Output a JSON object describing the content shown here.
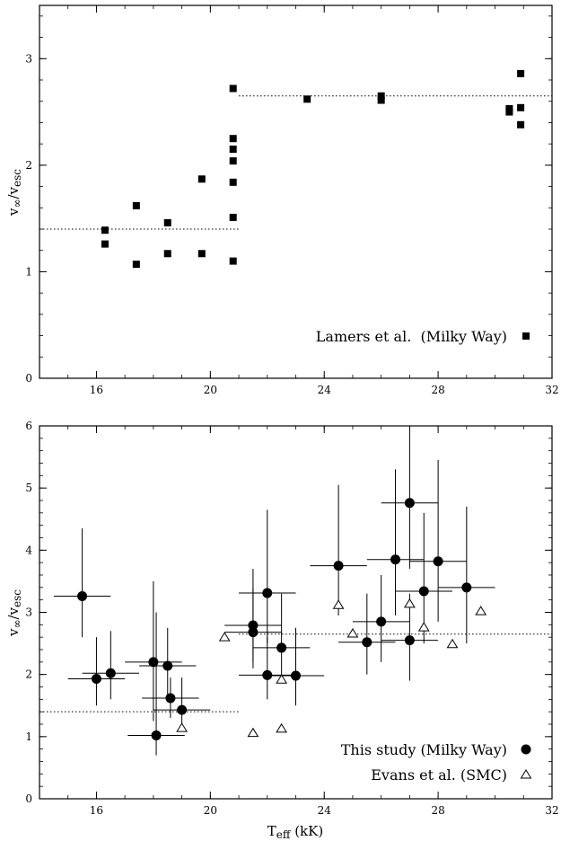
{
  "chart_data": [
    {
      "type": "scatter",
      "xlim": [
        14,
        32
      ],
      "ylim": [
        0,
        3.5
      ],
      "xticks": [
        "16",
        "20",
        "24",
        "28",
        "32"
      ],
      "yticks": [
        "0",
        "1",
        "2",
        "3"
      ],
      "ylabel": "v∞/vesc",
      "xlabel": "",
      "grid": false,
      "legend": "bottom-right",
      "series": [
        {
          "name": "Lamers et al.  (Milky Way)",
          "marker": "filled-square",
          "points": [
            [
              16.3,
              1.39
            ],
            [
              16.3,
              1.26
            ],
            [
              17.4,
              1.62
            ],
            [
              17.4,
              1.07
            ],
            [
              18.5,
              1.46
            ],
            [
              18.5,
              1.17
            ],
            [
              19.7,
              1.87
            ],
            [
              19.7,
              1.17
            ],
            [
              20.8,
              2.72
            ],
            [
              20.8,
              2.25
            ],
            [
              20.8,
              2.15
            ],
            [
              20.8,
              2.04
            ],
            [
              20.8,
              1.84
            ],
            [
              20.8,
              1.51
            ],
            [
              20.8,
              1.1
            ],
            [
              23.4,
              2.62
            ],
            [
              26.0,
              2.65
            ],
            [
              26.0,
              2.61
            ],
            [
              30.5,
              2.53
            ],
            [
              30.5,
              2.5
            ],
            [
              30.9,
              2.86
            ],
            [
              30.9,
              2.54
            ],
            [
              30.9,
              2.38
            ]
          ]
        }
      ],
      "reference_lines": [
        {
          "x": [
            14,
            21
          ],
          "y": 1.4
        },
        {
          "x": [
            21,
            32
          ],
          "y": 2.65
        }
      ]
    },
    {
      "type": "scatter",
      "xlim": [
        14,
        32
      ],
      "ylim": [
        0,
        6
      ],
      "xticks": [
        "16",
        "20",
        "24",
        "28",
        "32"
      ],
      "yticks": [
        "0",
        "1",
        "2",
        "3",
        "4",
        "5",
        "6"
      ],
      "ylabel": "v∞/vesc",
      "xlabel": "Teff (kK)",
      "grid": false,
      "legend": "bottom-right",
      "series": [
        {
          "name": "This study (Milky Way)",
          "marker": "filled-circle",
          "points": [
            {
              "x": 15.5,
              "y": 3.26,
              "xerr": 1.0,
              "ylo": 2.6,
              "yhi": 4.35
            },
            {
              "x": 16.0,
              "y": 1.93,
              "xerr": 1.0,
              "ylo": 1.5,
              "yhi": 2.6
            },
            {
              "x": 16.5,
              "y": 2.02,
              "xerr": 1.0,
              "ylo": 1.6,
              "yhi": 2.7
            },
            {
              "x": 18.0,
              "y": 2.2,
              "xerr": 1.0,
              "ylo": 1.25,
              "yhi": 3.5
            },
            {
              "x": 18.1,
              "y": 1.02,
              "xerr": 1.0,
              "ylo": 0.7,
              "yhi": 3.0
            },
            {
              "x": 18.5,
              "y": 2.14,
              "xerr": 1.0,
              "ylo": 1.6,
              "yhi": 2.75
            },
            {
              "x": 18.6,
              "y": 1.62,
              "xerr": 1.0,
              "ylo": 1.3,
              "yhi": 1.95
            },
            {
              "x": 19.0,
              "y": 1.43,
              "xerr": 1.0,
              "ylo": 1.2,
              "yhi": 1.95
            },
            {
              "x": 21.5,
              "y": 2.79,
              "xerr": 1.0,
              "ylo": 2.2,
              "yhi": 3.7
            },
            {
              "x": 21.5,
              "y": 2.68,
              "xerr": 1.0,
              "ylo": 2.1,
              "yhi": 3.4
            },
            {
              "x": 22.0,
              "y": 3.31,
              "xerr": 1.0,
              "ylo": 2.5,
              "yhi": 4.65
            },
            {
              "x": 22.0,
              "y": 1.99,
              "xerr": 1.0,
              "ylo": 1.6,
              "yhi": 2.6
            },
            {
              "x": 22.5,
              "y": 2.43,
              "xerr": 1.0,
              "ylo": 1.9,
              "yhi": 3.3
            },
            {
              "x": 23.0,
              "y": 1.98,
              "xerr": 1.0,
              "ylo": 1.5,
              "yhi": 2.75
            },
            {
              "x": 24.5,
              "y": 3.75,
              "xerr": 1.0,
              "ylo": 2.95,
              "yhi": 5.05
            },
            {
              "x": 25.5,
              "y": 2.52,
              "xerr": 1.0,
              "ylo": 2.0,
              "yhi": 3.3
            },
            {
              "x": 26.0,
              "y": 2.85,
              "xerr": 1.0,
              "ylo": 2.2,
              "yhi": 3.6
            },
            {
              "x": 26.5,
              "y": 3.85,
              "xerr": 1.0,
              "ylo": 2.95,
              "yhi": 5.3
            },
            {
              "x": 27.0,
              "y": 4.76,
              "xerr": 1.0,
              "ylo": 3.7,
              "yhi": 6.0
            },
            {
              "x": 27.0,
              "y": 2.55,
              "xerr": 1.0,
              "ylo": 1.9,
              "yhi": 3.3
            },
            {
              "x": 27.5,
              "y": 3.34,
              "xerr": 1.0,
              "ylo": 2.5,
              "yhi": 4.6
            },
            {
              "x": 28.0,
              "y": 3.82,
              "xerr": 1.0,
              "ylo": 2.85,
              "yhi": 5.45
            },
            {
              "x": 29.0,
              "y": 3.4,
              "xerr": 1.0,
              "ylo": 2.5,
              "yhi": 4.7
            }
          ]
        },
        {
          "name": "Evans et al. (SMC)",
          "marker": "open-triangle",
          "points": [
            [
              19.0,
              1.14
            ],
            [
              20.5,
              2.6
            ],
            [
              21.5,
              1.06
            ],
            [
              22.5,
              1.92
            ],
            [
              22.5,
              1.13
            ],
            [
              24.5,
              3.12
            ],
            [
              25.0,
              2.66
            ],
            [
              27.0,
              3.14
            ],
            [
              27.5,
              2.76
            ],
            [
              28.5,
              2.49
            ],
            [
              29.5,
              3.02
            ]
          ]
        }
      ],
      "reference_lines": [
        {
          "x": [
            14,
            21
          ],
          "y": 1.4
        },
        {
          "x": [
            21,
            32
          ],
          "y": 2.65
        }
      ]
    }
  ]
}
